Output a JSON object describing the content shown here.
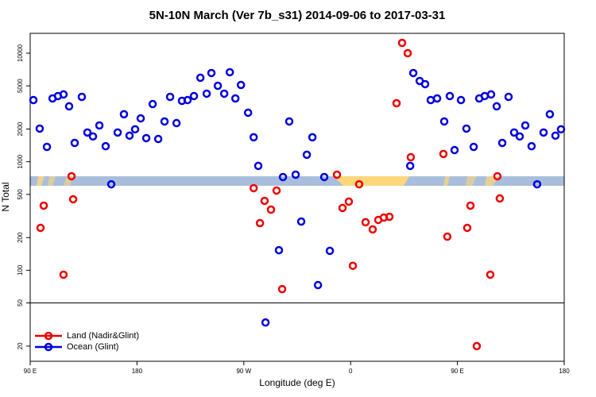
{
  "chart_data": {
    "type": "scatter",
    "title": "5N-10N March (Ver 7b_s31)   2014-09-06 to 2017-03-31",
    "x_label": "Longitude (deg E)",
    "y_label": "N Total",
    "log_y": true,
    "legend": "lower left",
    "hline": 50,
    "xlim": [
      90,
      540
    ],
    "ylim": [
      14.5,
      15240
    ],
    "xticks": [
      {
        "value": 90,
        "label": "90 E"
      },
      180,
      {
        "value": 270,
        "label": "90 W"
      },
      {
        "value": 360,
        "label": "0"
      },
      {
        "value": 450,
        "label": "90 E"
      },
      {
        "value": 540,
        "label": "180"
      }
    ],
    "yticks": [
      20,
      50,
      100,
      200,
      500,
      1000,
      2000,
      5000,
      10000
    ],
    "series": [
      {
        "name": "Land (Nadir&Glint)",
        "color": "#ee0000",
        "x": [
          98.7,
          101.4,
          118.1,
          124.8,
          126.2,
          278.3,
          283.6,
          287.5,
          292.9,
          297.6,
          302.3,
          348.5,
          353.2,
          358.5,
          361.9,
          367.2,
          372.6,
          378.6,
          383.3,
          388.0,
          392.7,
          398.7,
          403.4,
          408.1,
          410.7,
          438.2,
          441.5,
          458.3,
          461.0,
          466.3,
          477.7,
          483.7,
          485.7
        ],
        "values": [
          246,
          394,
          91,
          735,
          451,
          571,
          272,
          436,
          362,
          543,
          67,
          760,
          375,
          429,
          110,
          620,
          277,
          238,
          291,
          306,
          311,
          3460,
          12450,
          10000,
          1100,
          1180,
          204,
          246,
          394,
          20,
          91,
          735,
          459
        ]
      },
      {
        "name": "Ocean (Glint)",
        "color": "#0000dd",
        "x": [
          92.7,
          98.0,
          104.1,
          108.8,
          113.4,
          118.1,
          122.8,
          127.5,
          133.5,
          138.2,
          142.9,
          148.3,
          153.6,
          158.3,
          163.7,
          169.0,
          173.7,
          178.4,
          183.1,
          187.8,
          193.2,
          197.9,
          203.2,
          207.9,
          213.3,
          217.9,
          222.6,
          228.0,
          233.4,
          238.7,
          242.7,
          248.1,
          253.5,
          258.2,
          262.9,
          267.6,
          273.6,
          278.3,
          282.2,
          288.3,
          299.6,
          303.0,
          308.3,
          313.7,
          318.4,
          323.1,
          327.8,
          332.5,
          337.8,
          342.5,
          410.2,
          412.8,
          418.2,
          422.8,
          427.5,
          432.9,
          438.9,
          443.6,
          447.6,
          453.0,
          457.6,
          463.7,
          468.4,
          473.0,
          478.4,
          483.1,
          487.8,
          493.1,
          497.8,
          502.5,
          507.2,
          512.5,
          517.2,
          522.6,
          527.9,
          532.6,
          537.3
        ],
        "values": [
          3700,
          2020,
          1370,
          3830,
          4030,
          4170,
          3240,
          1490,
          3960,
          1860,
          1710,
          2160,
          1390,
          620,
          1860,
          2740,
          1740,
          1990,
          2510,
          1650,
          3400,
          1620,
          2350,
          3960,
          2270,
          3640,
          3700,
          4030,
          5940,
          4240,
          6570,
          5010,
          4240,
          6680,
          3830,
          5100,
          2830,
          1680,
          916,
          33,
          153,
          723,
          2350,
          760,
          281,
          1160,
          1680,
          73,
          723,
          151,
          916,
          6570,
          5550,
          5190,
          3700,
          3830,
          2350,
          4030,
          1280,
          3700,
          2020,
          1370,
          3830,
          4030,
          4170,
          3240,
          1490,
          3960,
          1860,
          1710,
          2160,
          1390,
          620,
          1860,
          2740,
          1740,
          1990
        ]
      }
    ]
  }
}
